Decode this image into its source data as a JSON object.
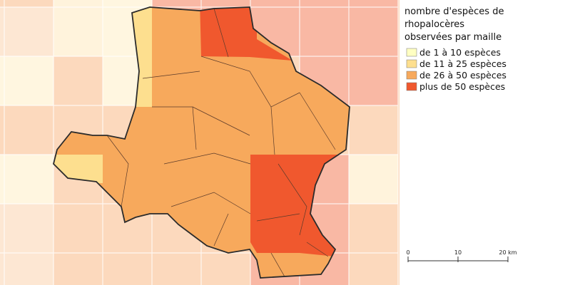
{
  "legend": {
    "title": [
      "nombre d'espèces de",
      "rhopalocères",
      "observées par maille"
    ],
    "items": [
      {
        "label": "de 1 à 10 espèces",
        "color": "#ffffc2"
      },
      {
        "label": "de 11 à 25 espèces",
        "color": "#fddf8f"
      },
      {
        "label": "de 26 à 50 espèces",
        "color": "#f7a95c"
      },
      {
        "label": "plus de 50 espèces",
        "color": "#f0582e"
      }
    ]
  },
  "scale_bar": {
    "labels": [
      "0",
      "10",
      "20 km"
    ]
  }
}
